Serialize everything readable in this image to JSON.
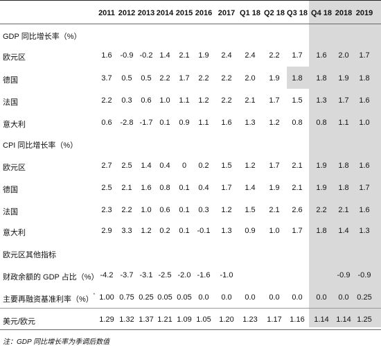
{
  "columns": [
    "2011",
    "2012",
    "2013",
    "2014",
    "2015",
    "2016",
    "2017",
    "Q1 18",
    "Q2 18",
    "Q3 18",
    "Q4 18",
    "2018",
    "2019"
  ],
  "sections": [
    {
      "title": "GDP 同比增长率（%）",
      "rows": [
        {
          "label": "欧元区",
          "values": [
            "1.6",
            "-0.9",
            "-0.2",
            "1.4",
            "2.1",
            "1.9",
            "2.4",
            "2.4",
            "2.2",
            "1.7",
            "1.6",
            "2.0",
            "1.7"
          ]
        },
        {
          "label": "德国",
          "values": [
            "3.7",
            "0.5",
            "0.5",
            "2.2",
            "1.7",
            "2.2",
            "2.2",
            "2.0",
            "1.9",
            "1.8",
            "1.8",
            "1.9",
            "1.8"
          ]
        },
        {
          "label": "法国",
          "values": [
            "2.2",
            "0.3",
            "0.6",
            "1.0",
            "1.1",
            "1.2",
            "2.2",
            "2.1",
            "1.7",
            "1.5",
            "1.3",
            "1.7",
            "1.6"
          ]
        },
        {
          "label": "意大利",
          "values": [
            "0.6",
            "-2.8",
            "-1.7",
            "0.1",
            "0.9",
            "1.1",
            "1.6",
            "1.3",
            "1.2",
            "0.8",
            "0.8",
            "1.1",
            "1.0"
          ]
        }
      ]
    },
    {
      "title": "CPI 同比增长率（%）",
      "rows": [
        {
          "label": "欧元区",
          "values": [
            "2.7",
            "2.5",
            "1.4",
            "0.4",
            "0",
            "0.2",
            "1.5",
            "1.2",
            "1.7",
            "2.1",
            "1.9",
            "1.8",
            "1.6"
          ]
        },
        {
          "label": "德国",
          "values": [
            "2.5",
            "2.1",
            "1.6",
            "0.8",
            "0.1",
            "0.4",
            "1.7",
            "1.4",
            "1.9",
            "2.1",
            "1.9",
            "1.8",
            "1.7"
          ]
        },
        {
          "label": "法国",
          "values": [
            "2.3",
            "2.2",
            "1.0",
            "0.6",
            "0.1",
            "0.3",
            "1.2",
            "1.5",
            "2.1",
            "2.6",
            "2.2",
            "2.1",
            "1.6"
          ]
        },
        {
          "label": "意大利",
          "values": [
            "2.9",
            "3.3",
            "1.2",
            "0.2",
            "0.1",
            "-0.1",
            "1.3",
            "0.9",
            "1.0",
            "1.7",
            "1.8",
            "1.4",
            "1.3"
          ]
        }
      ]
    },
    {
      "title": "欧元区其他指标",
      "rows": [
        {
          "label": "财政余额的 GDP 占比（%）",
          "values": [
            "-4.2",
            "-3.7",
            "-3.1",
            "-2.5",
            "-2.0",
            "-1.6",
            "-1.0",
            "",
            "",
            "",
            "",
            "-0.9",
            "-0.9"
          ]
        },
        {
          "label": "主要再融资基准利率（%）",
          "sup": "*",
          "values": [
            "1.00",
            "0.75",
            "0.25",
            "0.05",
            "0.05",
            "0.0",
            "0.0",
            "0.0",
            "0.0",
            "0.0",
            "0.0",
            "0.0",
            "0.25"
          ]
        },
        {
          "label": "美元/欧元",
          "values": [
            "1.29",
            "1.32",
            "1.37",
            "1.21",
            "1.09",
            "1.05",
            "1.20",
            "1.23",
            "1.17",
            "1.16",
            "1.14",
            "1.14",
            "1.25"
          ]
        }
      ]
    }
  ],
  "note": "注：GDP 同比增长率为季调后数值",
  "shade_color": "#d9d9d9"
}
